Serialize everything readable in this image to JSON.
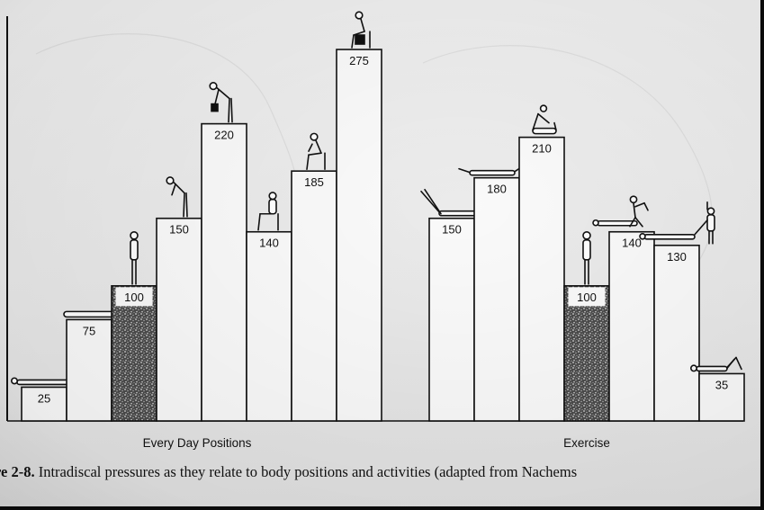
{
  "chart_data": {
    "type": "bar",
    "ylim": [
      0,
      290
    ],
    "groups": [
      {
        "label": "Every Day Positions",
        "bars": [
          {
            "value": 25,
            "pattern": "plain",
            "pose": "lying-supine"
          },
          {
            "value": 75,
            "pattern": "plain",
            "pose": "lying-side"
          },
          {
            "value": 100,
            "pattern": "stipple",
            "pose": "standing"
          },
          {
            "value": 150,
            "pattern": "plain",
            "pose": "standing-bent"
          },
          {
            "value": 220,
            "pattern": "plain",
            "pose": "standing-bent-lifting"
          },
          {
            "value": 140,
            "pattern": "plain",
            "pose": "sitting-upright"
          },
          {
            "value": 185,
            "pattern": "plain",
            "pose": "sitting-slumped"
          },
          {
            "value": 275,
            "pattern": "plain",
            "pose": "sitting-lifting"
          }
        ]
      },
      {
        "label": "Exercise",
        "bars": [
          {
            "value": 150,
            "pattern": "plain",
            "pose": "straight-leg-raise"
          },
          {
            "value": 180,
            "pattern": "plain",
            "pose": "prone-extension"
          },
          {
            "value": 210,
            "pattern": "plain",
            "pose": "sit-up"
          },
          {
            "value": 100,
            "pattern": "stipple",
            "pose": "standing"
          },
          {
            "value": 140,
            "pattern": "plain",
            "pose": "assisted-exercise"
          },
          {
            "value": 130,
            "pattern": "plain",
            "pose": "traction"
          },
          {
            "value": 35,
            "pattern": "plain",
            "pose": "supine-knees-up"
          }
        ]
      }
    ]
  },
  "caption": {
    "figure_label": "re 2-8.",
    "text": "Intradiscal pressures as they relate to body positions and activities (adapted from Nachems"
  }
}
